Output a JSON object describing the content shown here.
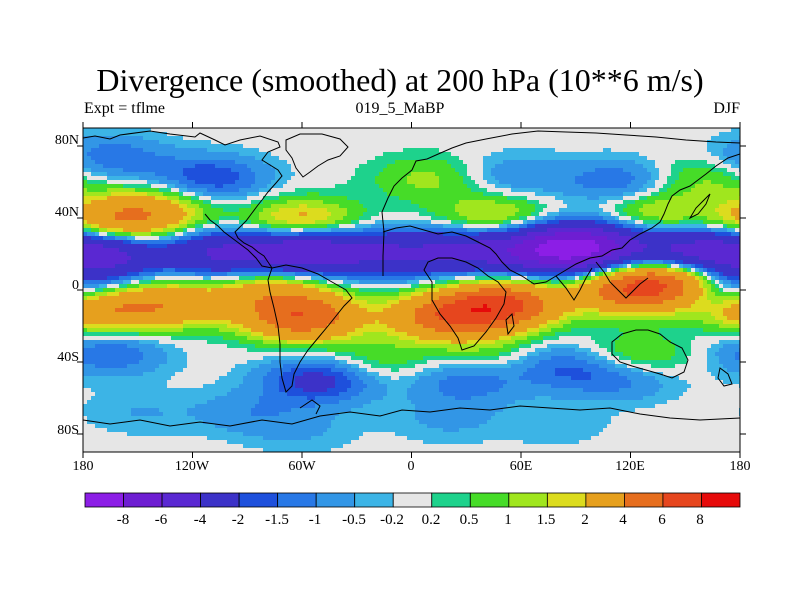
{
  "chart_data": {
    "type": "heatmap",
    "title": "Divergence (smoothed) at 200 hPa (10**6 m/s)",
    "subtitle_left": "Expt = tflme",
    "subtitle_center": "019_5_MaBP",
    "subtitle_right": "DJF",
    "x_ticks": [
      "180",
      "120W",
      "60W",
      "0",
      "60E",
      "120E",
      "180"
    ],
    "x_values": [
      -180,
      -120,
      -60,
      0,
      60,
      120,
      180
    ],
    "y_ticks": [
      "80N",
      "40N",
      "0",
      "40S",
      "80S"
    ],
    "y_values": [
      80,
      40,
      0,
      -40,
      -80
    ],
    "xlim": [
      -180,
      180
    ],
    "ylim": [
      -90,
      90
    ],
    "colorbar_labels": [
      "-8",
      "-6",
      "-4",
      "-2",
      "-1.5",
      "-1",
      "-0.5",
      "-0.2",
      "0.2",
      "0.5",
      "1",
      "1.5",
      "2",
      "4",
      "6",
      "8"
    ],
    "colorbar_colors": [
      "#8c1ee6",
      "#6e1ed2",
      "#5a28d2",
      "#3c32c8",
      "#1e50dc",
      "#2878e6",
      "#3296e6",
      "#3cb4e6",
      "#e6e6e6",
      "#1ed28c",
      "#46dc28",
      "#a0e61e",
      "#dcdc1e",
      "#e6a01e",
      "#e66e1e",
      "#e6461e",
      "#e60a0a"
    ],
    "contour_levels": [
      -8,
      -6,
      -4,
      -2,
      -1.5,
      -1,
      -0.5,
      -0.2,
      0.2,
      0.5,
      1,
      1.5,
      2,
      4,
      6,
      8
    ],
    "field_features": [
      {
        "lon": -170,
        "lat": 20,
        "value": -5.0
      },
      {
        "lon": -105,
        "lat": 20,
        "value": -4.0
      },
      {
        "lon": -58,
        "lat": 22,
        "value": -6.0
      },
      {
        "lon": -10,
        "lat": 20,
        "value": -3.5
      },
      {
        "lon": 35,
        "lat": 22,
        "value": -4.0
      },
      {
        "lon": 80,
        "lat": 22,
        "value": -6.0
      },
      {
        "lon": 98,
        "lat": 25,
        "value": -4.5
      },
      {
        "lon": 150,
        "lat": 22,
        "value": -4.0
      },
      {
        "lon": 172,
        "lat": 0,
        "value": -3.0
      },
      {
        "lon": -170,
        "lat": -10,
        "value": 4.0
      },
      {
        "lon": -130,
        "lat": -8,
        "value": 3.0
      },
      {
        "lon": -60,
        "lat": -15,
        "value": 5.5
      },
      {
        "lon": -78,
        "lat": 0,
        "value": 2.5
      },
      {
        "lon": 20,
        "lat": -15,
        "value": 5.0
      },
      {
        "lon": 50,
        "lat": -8,
        "value": 6.0
      },
      {
        "lon": 122,
        "lat": 0,
        "value": 5.0
      },
      {
        "lon": 145,
        "lat": 5,
        "value": 4.0
      },
      {
        "lon": -160,
        "lat": 38,
        "value": 3.5
      },
      {
        "lon": -140,
        "lat": 45,
        "value": 2.0
      },
      {
        "lon": -60,
        "lat": 37,
        "value": 3.0
      },
      {
        "lon": 45,
        "lat": 40,
        "value": 2.0
      },
      {
        "lon": 135,
        "lat": 42,
        "value": 1.8
      },
      {
        "lon": 10,
        "lat": 62,
        "value": 1.2
      },
      {
        "lon": 160,
        "lat": 62,
        "value": 1.2
      },
      {
        "lon": -165,
        "lat": 73,
        "value": -1.5
      },
      {
        "lon": -110,
        "lat": 62,
        "value": -2.0
      },
      {
        "lon": 55,
        "lat": 63,
        "value": -1.0
      },
      {
        "lon": 115,
        "lat": 60,
        "value": -1.5
      },
      {
        "lon": -165,
        "lat": -35,
        "value": -1.5
      },
      {
        "lon": -50,
        "lat": -50,
        "value": -2.5
      },
      {
        "lon": 30,
        "lat": -50,
        "value": -1.5
      },
      {
        "lon": 80,
        "lat": -42,
        "value": -1.5
      },
      {
        "lon": 115,
        "lat": -48,
        "value": -1.5
      },
      {
        "lon": -20,
        "lat": -40,
        "value": 1.0
      },
      {
        "lon": 45,
        "lat": -38,
        "value": 1.0
      },
      {
        "lon": 122,
        "lat": -38,
        "value": 1.5
      },
      {
        "lon": -90,
        "lat": -68,
        "value": -0.8
      },
      {
        "lon": -60,
        "lat": -78,
        "value": -0.5
      },
      {
        "lon": 20,
        "lat": -72,
        "value": -0.6
      },
      {
        "lon": 80,
        "lat": -75,
        "value": -0.4
      },
      {
        "lon": -150,
        "lat": -68,
        "value": -0.5
      }
    ]
  }
}
